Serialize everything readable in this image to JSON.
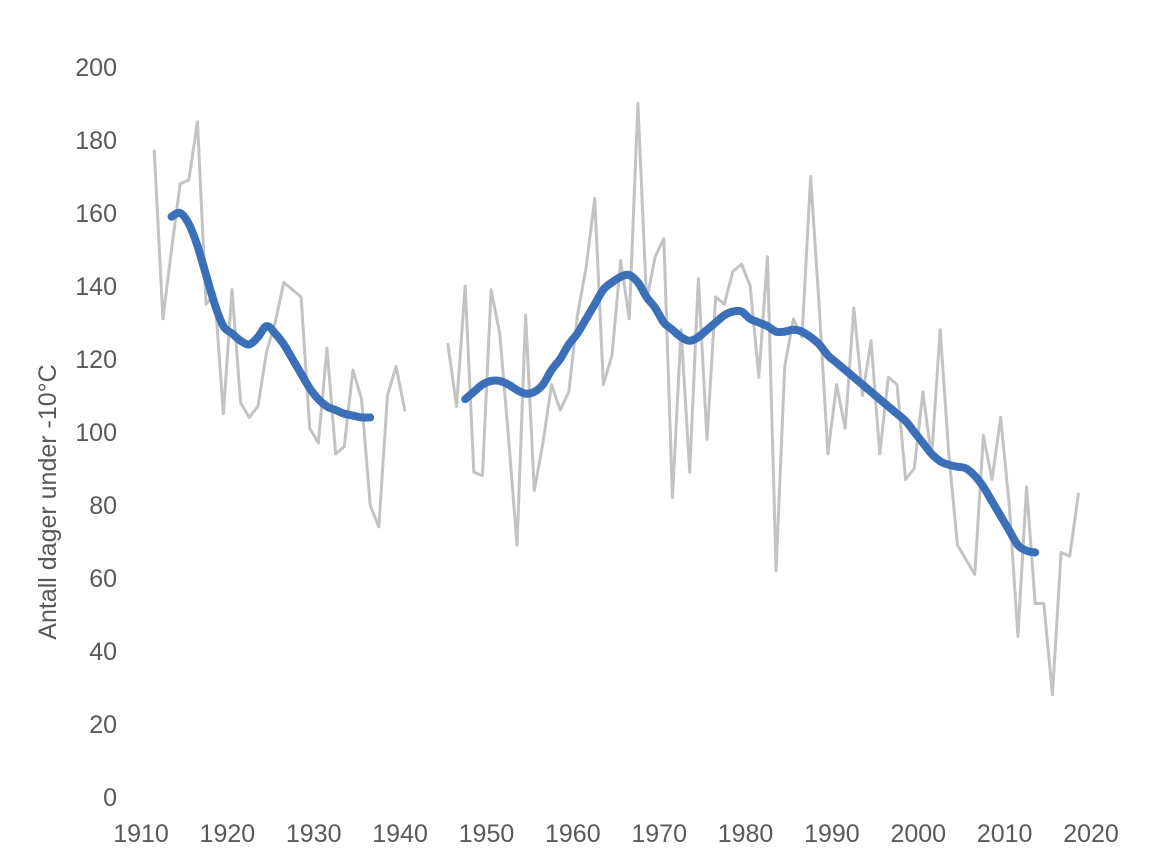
{
  "chart_data": {
    "type": "line",
    "title": "",
    "xlabel": "",
    "ylabel": "Antall dager under -10°C",
    "xlim": [
      1910,
      2020
    ],
    "ylim": [
      0,
      200
    ],
    "xticks": [
      1910,
      1920,
      1930,
      1940,
      1950,
      1960,
      1970,
      1980,
      1990,
      2000,
      2010,
      2020
    ],
    "yticks": [
      0,
      20,
      40,
      60,
      80,
      100,
      120,
      140,
      160,
      180,
      200
    ],
    "grid": false,
    "legend": "none",
    "series": [
      {
        "role": "annual",
        "color": "#c3c3c3",
        "segments": [
          [
            [
              1912,
              177
            ],
            [
              1913,
              131
            ],
            [
              1914,
              150
            ],
            [
              1915,
              168
            ],
            [
              1916,
              169
            ],
            [
              1917,
              185
            ],
            [
              1918,
              135
            ],
            [
              1919,
              138
            ],
            [
              1920,
              105
            ],
            [
              1921,
              139
            ],
            [
              1922,
              108
            ],
            [
              1923,
              104
            ],
            [
              1924,
              107
            ],
            [
              1925,
              122
            ],
            [
              1926,
              130
            ],
            [
              1927,
              141
            ],
            [
              1928,
              139
            ],
            [
              1929,
              137
            ],
            [
              1930,
              101
            ],
            [
              1931,
              97
            ],
            [
              1932,
              123
            ],
            [
              1933,
              94
            ],
            [
              1934,
              96
            ],
            [
              1935,
              117
            ],
            [
              1936,
              109
            ],
            [
              1937,
              80
            ],
            [
              1938,
              74
            ],
            [
              1939,
              110
            ],
            [
              1940,
              118
            ],
            [
              1941,
              106
            ]
          ],
          [
            [
              1946,
              124
            ],
            [
              1947,
              107
            ],
            [
              1948,
              140
            ],
            [
              1949,
              89
            ],
            [
              1950,
              88
            ],
            [
              1951,
              139
            ],
            [
              1952,
              127
            ],
            [
              1953,
              99
            ],
            [
              1954,
              69
            ],
            [
              1955,
              132
            ],
            [
              1956,
              84
            ],
            [
              1957,
              97
            ],
            [
              1958,
              113
            ],
            [
              1959,
              106
            ],
            [
              1960,
              111
            ],
            [
              1961,
              132
            ],
            [
              1962,
              145
            ],
            [
              1963,
              164
            ],
            [
              1964,
              113
            ],
            [
              1965,
              121
            ],
            [
              1966,
              147
            ],
            [
              1967,
              131
            ],
            [
              1968,
              190
            ],
            [
              1969,
              136
            ],
            [
              1970,
              148
            ],
            [
              1971,
              153
            ],
            [
              1972,
              82
            ],
            [
              1973,
              128
            ],
            [
              1974,
              89
            ],
            [
              1975,
              142
            ],
            [
              1976,
              98
            ],
            [
              1977,
              137
            ],
            [
              1978,
              135
            ],
            [
              1979,
              144
            ],
            [
              1980,
              146
            ],
            [
              1981,
              140
            ],
            [
              1982,
              115
            ],
            [
              1983,
              148
            ],
            [
              1984,
              62
            ],
            [
              1985,
              118
            ],
            [
              1986,
              131
            ],
            [
              1987,
              126
            ],
            [
              1988,
              170
            ],
            [
              1989,
              134
            ],
            [
              1990,
              94
            ],
            [
              1991,
              113
            ],
            [
              1992,
              101
            ],
            [
              1993,
              134
            ],
            [
              1994,
              110
            ],
            [
              1995,
              125
            ],
            [
              1996,
              94
            ],
            [
              1997,
              115
            ],
            [
              1998,
              113
            ],
            [
              1999,
              87
            ],
            [
              2000,
              90
            ],
            [
              2001,
              111
            ],
            [
              2002,
              93
            ],
            [
              2003,
              128
            ],
            [
              2004,
              94
            ],
            [
              2005,
              69
            ],
            [
              2006,
              65
            ],
            [
              2007,
              61
            ],
            [
              2008,
              99
            ],
            [
              2009,
              87
            ],
            [
              2010,
              104
            ],
            [
              2011,
              80
            ],
            [
              2012,
              44
            ],
            [
              2013,
              85
            ],
            [
              2014,
              53
            ],
            [
              2015,
              53
            ],
            [
              2016,
              28
            ],
            [
              2017,
              67
            ],
            [
              2018,
              66
            ],
            [
              2019,
              83
            ]
          ]
        ]
      },
      {
        "role": "smoothed",
        "color": "#3b70b9",
        "segments": [
          [
            [
              1914,
              159
            ],
            [
              1915,
              160
            ],
            [
              1916,
              157
            ],
            [
              1917,
              151
            ],
            [
              1918,
              143
            ],
            [
              1919,
              135
            ],
            [
              1920,
              129
            ],
            [
              1921,
              127
            ],
            [
              1922,
              125
            ],
            [
              1923,
              124
            ],
            [
              1924,
              126
            ],
            [
              1925,
              129
            ],
            [
              1926,
              127
            ],
            [
              1927,
              124
            ],
            [
              1928,
              120
            ],
            [
              1929,
              116
            ],
            [
              1930,
              112
            ],
            [
              1931,
              109
            ],
            [
              1932,
              107
            ],
            [
              1933,
              106
            ],
            [
              1934,
              105
            ],
            [
              1935,
              104.5
            ],
            [
              1936,
              104
            ],
            [
              1937,
              104
            ]
          ],
          [
            [
              1948,
              109
            ],
            [
              1949,
              111
            ],
            [
              1950,
              113
            ],
            [
              1951,
              114
            ],
            [
              1952,
              114
            ],
            [
              1953,
              113
            ],
            [
              1954,
              111.5
            ],
            [
              1955,
              110.5
            ],
            [
              1956,
              111
            ],
            [
              1957,
              113
            ],
            [
              1958,
              117
            ],
            [
              1959,
              120
            ],
            [
              1960,
              124
            ],
            [
              1961,
              127
            ],
            [
              1962,
              131
            ],
            [
              1963,
              135
            ],
            [
              1964,
              139
            ],
            [
              1965,
              141
            ],
            [
              1966,
              142.5
            ],
            [
              1967,
              143
            ],
            [
              1968,
              141
            ],
            [
              1969,
              137
            ],
            [
              1970,
              134
            ],
            [
              1971,
              130
            ],
            [
              1972,
              128
            ],
            [
              1973,
              126
            ],
            [
              1974,
              125
            ],
            [
              1975,
              126
            ],
            [
              1976,
              128
            ],
            [
              1977,
              130
            ],
            [
              1978,
              132
            ],
            [
              1979,
              133
            ],
            [
              1980,
              133
            ],
            [
              1981,
              131
            ],
            [
              1982,
              130
            ],
            [
              1983,
              129
            ],
            [
              1984,
              127.5
            ],
            [
              1985,
              127.5
            ],
            [
              1986,
              128
            ],
            [
              1987,
              127.5
            ],
            [
              1988,
              126
            ],
            [
              1989,
              124
            ],
            [
              1990,
              121
            ],
            [
              1991,
              119
            ],
            [
              1992,
              117
            ],
            [
              1993,
              115
            ],
            [
              1994,
              113
            ],
            [
              1995,
              111
            ],
            [
              1996,
              109
            ],
            [
              1997,
              107
            ],
            [
              1998,
              105
            ],
            [
              1999,
              103
            ],
            [
              2000,
              100
            ],
            [
              2001,
              97
            ],
            [
              2002,
              94
            ],
            [
              2003,
              92
            ],
            [
              2004,
              91
            ],
            [
              2005,
              90.5
            ],
            [
              2006,
              90
            ],
            [
              2007,
              88
            ],
            [
              2008,
              85
            ],
            [
              2009,
              81
            ],
            [
              2010,
              77
            ],
            [
              2011,
              73
            ],
            [
              2012,
              69
            ],
            [
              2013,
              67.5
            ],
            [
              2014,
              67
            ]
          ]
        ]
      }
    ]
  }
}
